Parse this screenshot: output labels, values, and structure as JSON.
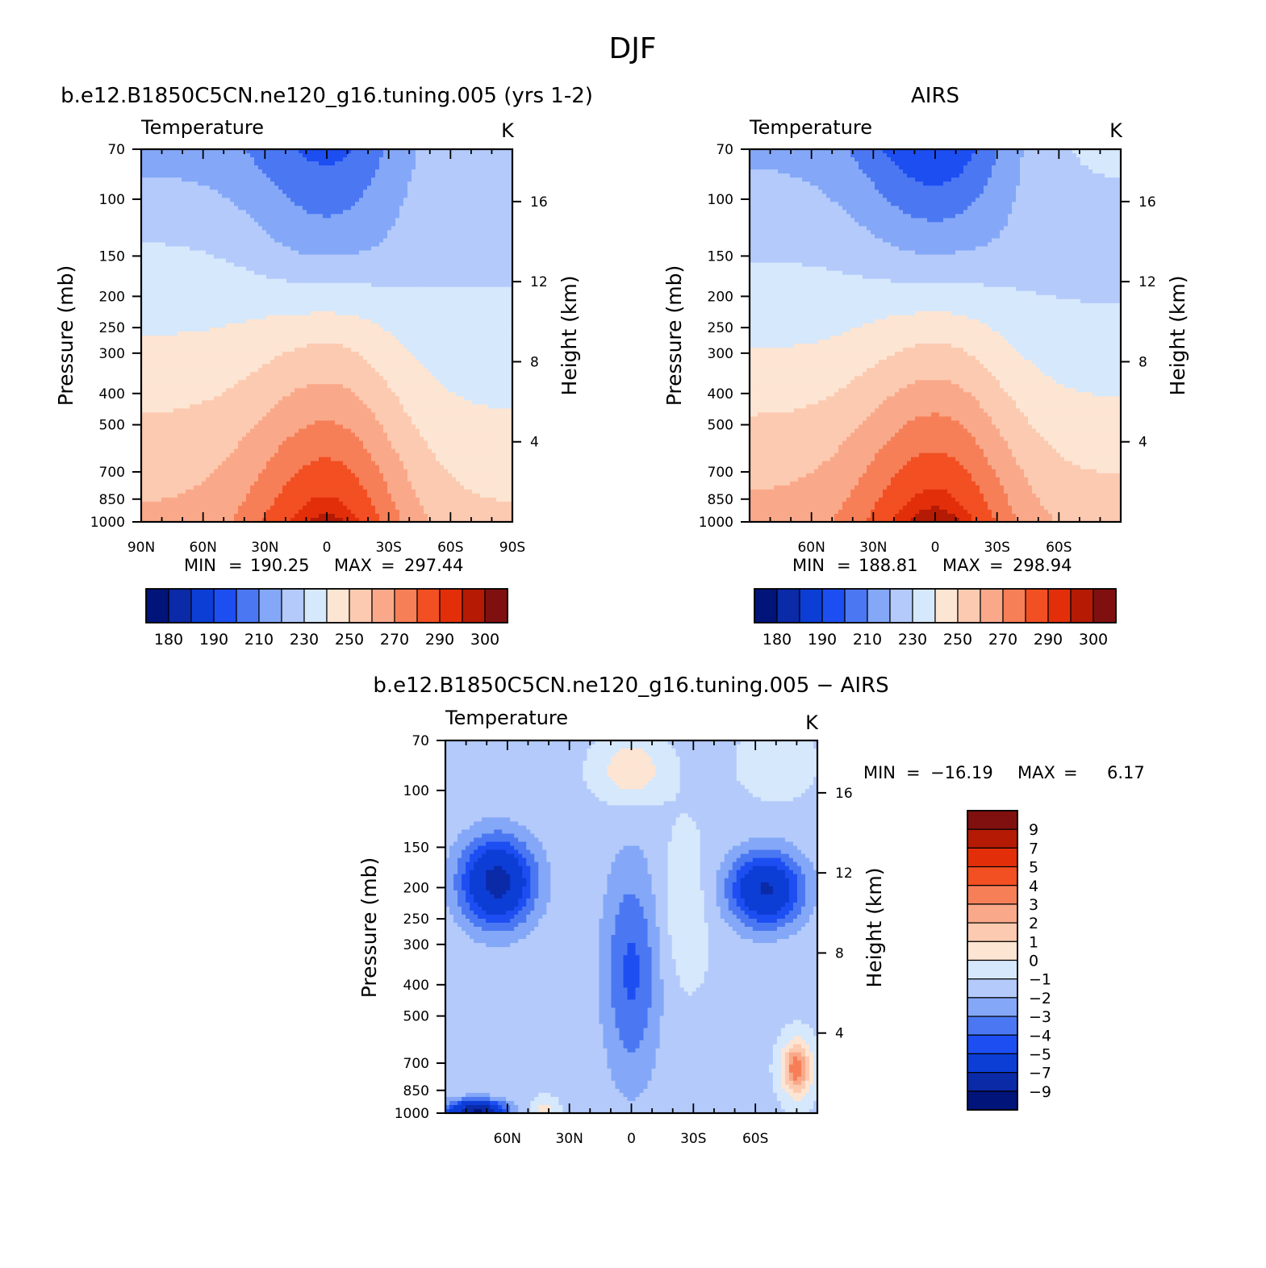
{
  "figure": {
    "title": "DJF"
  },
  "chart_data": [
    {
      "type": "heatmap",
      "panel_title": "b.e12.B1850C5CN.ne120_g16.tuning.005 (yrs 1-2)",
      "field": "Temperature",
      "units": "K",
      "ylabel": "Pressure (mb)",
      "ylabel_right": "Height (km)",
      "pressure_levels": [
        70,
        100,
        150,
        200,
        250,
        300,
        400,
        500,
        700,
        850,
        1000
      ],
      "height_ticks": [
        4,
        8,
        12,
        16
      ],
      "xlim": [
        90,
        -90
      ],
      "x_ticks": [
        {
          "value": 90,
          "label": "90N"
        },
        {
          "value": 60,
          "label": "60N"
        },
        {
          "value": 30,
          "label": "30N"
        },
        {
          "value": 0,
          "label": "0"
        },
        {
          "value": -30,
          "label": "30S"
        },
        {
          "value": -60,
          "label": "60S"
        },
        {
          "value": -90,
          "label": "90S"
        }
      ],
      "stats": {
        "min_label": "MIN",
        "min": "190.25",
        "max_label": "MAX",
        "max": "297.44"
      },
      "approx_field": {
        "pole_north": [
          216,
          230,
          240,
          252,
          262
        ],
        "tropics": [
          197,
          215,
          248,
          272,
          297
        ],
        "pole_south": [
          228,
          228,
          232,
          242,
          252
        ]
      },
      "colorbar": {
        "orientation": "horizontal",
        "labels": [
          "180",
          "190",
          "210",
          "230",
          "250",
          "270",
          "290",
          "300"
        ]
      }
    },
    {
      "type": "heatmap",
      "panel_title": "AIRS",
      "field": "Temperature",
      "units": "K",
      "ylabel": "Pressure (mb)",
      "ylabel_right": "Height (km)",
      "pressure_levels": [
        70,
        100,
        150,
        200,
        250,
        300,
        400,
        500,
        700,
        850,
        1000
      ],
      "height_ticks": [
        4,
        8,
        12,
        16
      ],
      "xlim": [
        90,
        -90
      ],
      "x_ticks": [
        {
          "value": 60,
          "label": "60N"
        },
        {
          "value": 30,
          "label": "30N"
        },
        {
          "value": 0,
          "label": "0"
        },
        {
          "value": -30,
          "label": "30S"
        },
        {
          "value": -60,
          "label": "60S"
        }
      ],
      "stats": {
        "min_label": "MIN",
        "min": "188.81",
        "max_label": "MAX",
        "max": "298.94"
      },
      "approx_field": {
        "pole_north": [
          218,
          228,
          238,
          252,
          264
        ],
        "tropics": [
          190,
          216,
          248,
          274,
          299
        ],
        "pole_south": [
          232,
          226,
          232,
          244,
          256
        ]
      },
      "colorbar": {
        "orientation": "horizontal",
        "labels": [
          "180",
          "190",
          "210",
          "230",
          "250",
          "270",
          "290",
          "300"
        ]
      }
    },
    {
      "type": "heatmap",
      "panel_title": "b.e12.B1850C5CN.ne120_g16.tuning.005 − AIRS",
      "field": "Temperature",
      "units": "K",
      "ylabel": "Pressure (mb)",
      "ylabel_right": "Height (km)",
      "pressure_levels": [
        70,
        100,
        150,
        200,
        250,
        300,
        400,
        500,
        700,
        850,
        1000
      ],
      "height_ticks": [
        4,
        8,
        12,
        16
      ],
      "xlim": [
        90,
        -90
      ],
      "x_ticks": [
        {
          "value": 60,
          "label": "60N"
        },
        {
          "value": 30,
          "label": "30N"
        },
        {
          "value": 0,
          "label": "0"
        },
        {
          "value": -30,
          "label": "30S"
        },
        {
          "value": -60,
          "label": "60S"
        }
      ],
      "stats": {
        "min_label": "MIN",
        "min": "−16.19",
        "max_label": "MAX",
        "max": "6.17"
      },
      "colorbar": {
        "orientation": "vertical",
        "labels": [
          "9",
          "7",
          "5",
          "4",
          "3",
          "2",
          "1",
          "0",
          "−1",
          "−2",
          "−3",
          "−4",
          "−5",
          "−7",
          "−9"
        ]
      }
    }
  ],
  "palettes": {
    "absolute": [
      "#00147a",
      "#0a2aa8",
      "#0c3ed6",
      "#1d4ef2",
      "#4b78f2",
      "#84a8f7",
      "#b4cafb",
      "#d6e8fb",
      "#fde5d3",
      "#fccab0",
      "#f9a98a",
      "#f67f58",
      "#f24f22",
      "#e22f0a",
      "#b41a04",
      "#801010"
    ],
    "difference": [
      "#00147a",
      "#0a2aa8",
      "#0c3ed6",
      "#1d4ef2",
      "#4b78f2",
      "#84a8f7",
      "#b4cafb",
      "#d6e8fb",
      "#fde5d3",
      "#fccab0",
      "#f9a98a",
      "#f67f58",
      "#f24f22",
      "#e22f0a",
      "#b41a04",
      "#801010"
    ]
  }
}
